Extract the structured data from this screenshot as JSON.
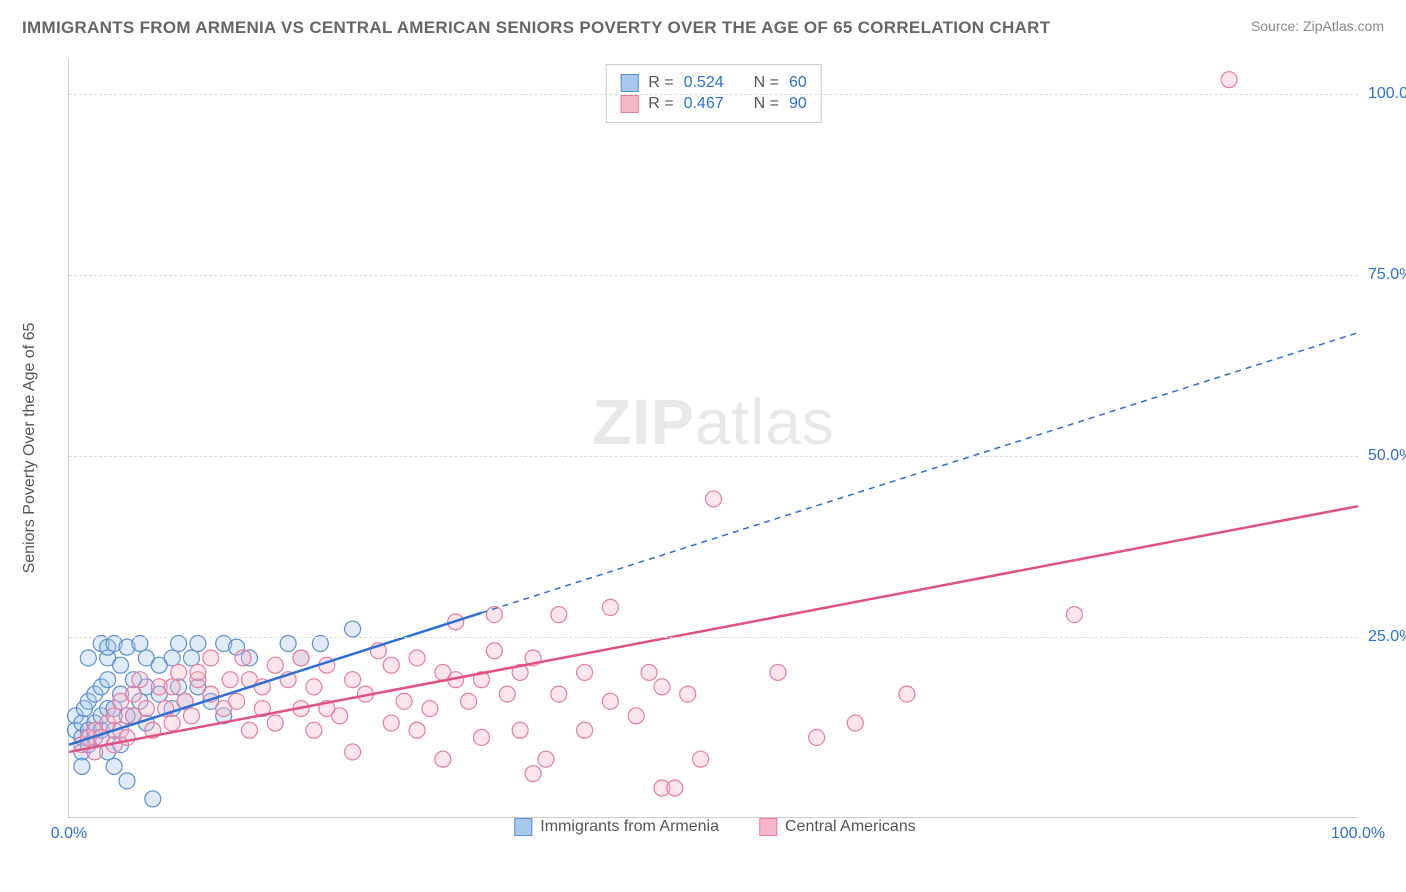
{
  "header": {
    "title": "IMMIGRANTS FROM ARMENIA VS CENTRAL AMERICAN SENIORS POVERTY OVER THE AGE OF 65 CORRELATION CHART",
    "source": "Source: ZipAtlas.com"
  },
  "chart": {
    "type": "scatter",
    "ylabel": "Seniors Poverty Over the Age of 65",
    "watermark_bold": "ZIP",
    "watermark_rest": "atlas",
    "xlim": [
      0,
      100
    ],
    "ylim": [
      0,
      105
    ],
    "xtick_min": {
      "pos": 0,
      "label": "0.0%"
    },
    "xtick_max": {
      "pos": 100,
      "label": "100.0%"
    },
    "yticks": [
      {
        "pos": 25,
        "label": "25.0%"
      },
      {
        "pos": 50,
        "label": "50.0%"
      },
      {
        "pos": 75,
        "label": "75.0%"
      },
      {
        "pos": 100,
        "label": "100.0%"
      }
    ],
    "grid_color": "#dddddd",
    "axis_color": "#cccccc",
    "background_color": "#ffffff",
    "marker_radius": 8,
    "marker_stroke_width": 1.2,
    "marker_fill_opacity": 0.35,
    "series": [
      {
        "key": "armenia",
        "label": "Immigrants from Armenia",
        "color_fill": "#a7c7ec",
        "color_stroke": "#5b8fd6",
        "R": "0.524",
        "N": "60",
        "trend": {
          "x1": 0,
          "y1": 10,
          "x2": 100,
          "y2": 67,
          "dash_after_x": 32,
          "color": "#2c6fd6",
          "width": 2.5
        },
        "points": [
          [
            0.5,
            12
          ],
          [
            0.5,
            14
          ],
          [
            1,
            9
          ],
          [
            1,
            11
          ],
          [
            1,
            13
          ],
          [
            1.2,
            15
          ],
          [
            1.5,
            10
          ],
          [
            1.5,
            12
          ],
          [
            1.5,
            16
          ],
          [
            1.5,
            22
          ],
          [
            2,
            11
          ],
          [
            2,
            13
          ],
          [
            2,
            17
          ],
          [
            2.5,
            12
          ],
          [
            2.5,
            14
          ],
          [
            2.5,
            18
          ],
          [
            2.5,
            24
          ],
          [
            3,
            15
          ],
          [
            3,
            19
          ],
          [
            3,
            22
          ],
          [
            3,
            23.5
          ],
          [
            3.5,
            7
          ],
          [
            3.5,
            12
          ],
          [
            3.5,
            15
          ],
          [
            3.5,
            24
          ],
          [
            4,
            10
          ],
          [
            4,
            17
          ],
          [
            4,
            21
          ],
          [
            4.5,
            23.5
          ],
          [
            4.5,
            5
          ],
          [
            5,
            14
          ],
          [
            5,
            19
          ],
          [
            5.5,
            24
          ],
          [
            5.5,
            16
          ],
          [
            6,
            13
          ],
          [
            6,
            18
          ],
          [
            6,
            22
          ],
          [
            6.5,
            2.5
          ],
          [
            7,
            17
          ],
          [
            7,
            21
          ],
          [
            8,
            15
          ],
          [
            8,
            22
          ],
          [
            8.5,
            18
          ],
          [
            8.5,
            24
          ],
          [
            9,
            16
          ],
          [
            9.5,
            22
          ],
          [
            10,
            18
          ],
          [
            10,
            24
          ],
          [
            11,
            16
          ],
          [
            12,
            24
          ],
          [
            12,
            14
          ],
          [
            13,
            23.5
          ],
          [
            14,
            22
          ],
          [
            17,
            24
          ],
          [
            18,
            22
          ],
          [
            19.5,
            24
          ],
          [
            22,
            26
          ],
          [
            3,
            9
          ],
          [
            4.5,
            14
          ],
          [
            1,
            7
          ]
        ]
      },
      {
        "key": "central",
        "label": "Central Americans",
        "color_fill": "#f5b8c8",
        "color_stroke": "#e87ca0",
        "R": "0.467",
        "N": "90",
        "trend": {
          "x1": 0,
          "y1": 9,
          "x2": 100,
          "y2": 43,
          "dash_after_x": 101,
          "color": "#e25084",
          "width": 2.5
        },
        "points": [
          [
            1,
            10
          ],
          [
            1.5,
            11
          ],
          [
            2,
            9
          ],
          [
            2,
            12
          ],
          [
            2.5,
            11
          ],
          [
            3,
            13
          ],
          [
            3.5,
            10
          ],
          [
            3.5,
            14
          ],
          [
            4,
            12
          ],
          [
            4,
            16
          ],
          [
            4.5,
            11
          ],
          [
            5,
            14
          ],
          [
            5,
            17
          ],
          [
            5.5,
            19
          ],
          [
            6,
            15
          ],
          [
            6.5,
            12
          ],
          [
            7,
            18
          ],
          [
            7.5,
            15
          ],
          [
            8,
            13
          ],
          [
            8,
            18
          ],
          [
            8.5,
            20
          ],
          [
            9,
            16
          ],
          [
            9.5,
            14
          ],
          [
            10,
            19
          ],
          [
            10,
            20
          ],
          [
            11,
            17
          ],
          [
            11,
            22
          ],
          [
            12,
            15
          ],
          [
            12.5,
            19
          ],
          [
            13,
            16
          ],
          [
            13.5,
            22
          ],
          [
            14,
            12
          ],
          [
            14,
            19
          ],
          [
            15,
            15
          ],
          [
            15,
            18
          ],
          [
            16,
            13
          ],
          [
            16,
            21
          ],
          [
            17,
            19
          ],
          [
            18,
            15
          ],
          [
            18,
            22
          ],
          [
            19,
            12
          ],
          [
            19,
            18
          ],
          [
            20,
            15
          ],
          [
            20,
            21
          ],
          [
            21,
            14
          ],
          [
            22,
            9
          ],
          [
            22,
            19
          ],
          [
            23,
            17
          ],
          [
            24,
            23
          ],
          [
            25,
            13
          ],
          [
            25,
            21
          ],
          [
            26,
            16
          ],
          [
            27,
            12
          ],
          [
            27,
            22
          ],
          [
            28,
            15
          ],
          [
            29,
            8
          ],
          [
            30,
            19
          ],
          [
            30,
            27
          ],
          [
            31,
            16
          ],
          [
            32,
            11
          ],
          [
            33,
            23
          ],
          [
            33,
            28
          ],
          [
            34,
            17
          ],
          [
            35,
            12
          ],
          [
            35,
            20
          ],
          [
            36,
            6
          ],
          [
            36,
            22
          ],
          [
            37,
            8
          ],
          [
            38,
            17
          ],
          [
            38,
            28
          ],
          [
            40,
            12
          ],
          [
            40,
            20
          ],
          [
            42,
            16
          ],
          [
            42,
            29
          ],
          [
            44,
            14
          ],
          [
            45,
            20
          ],
          [
            46,
            4
          ],
          [
            46,
            18
          ],
          [
            47,
            4
          ],
          [
            48,
            17
          ],
          [
            49,
            8
          ],
          [
            50,
            44
          ],
          [
            55,
            20
          ],
          [
            58,
            11
          ],
          [
            61,
            13
          ],
          [
            65,
            17
          ],
          [
            78,
            28
          ],
          [
            90,
            102
          ],
          [
            29,
            20
          ],
          [
            32,
            19
          ]
        ]
      }
    ],
    "stats_legend_labels": {
      "R": "R =",
      "N": "N ="
    },
    "bottom_legend_order": [
      "armenia",
      "central"
    ]
  }
}
